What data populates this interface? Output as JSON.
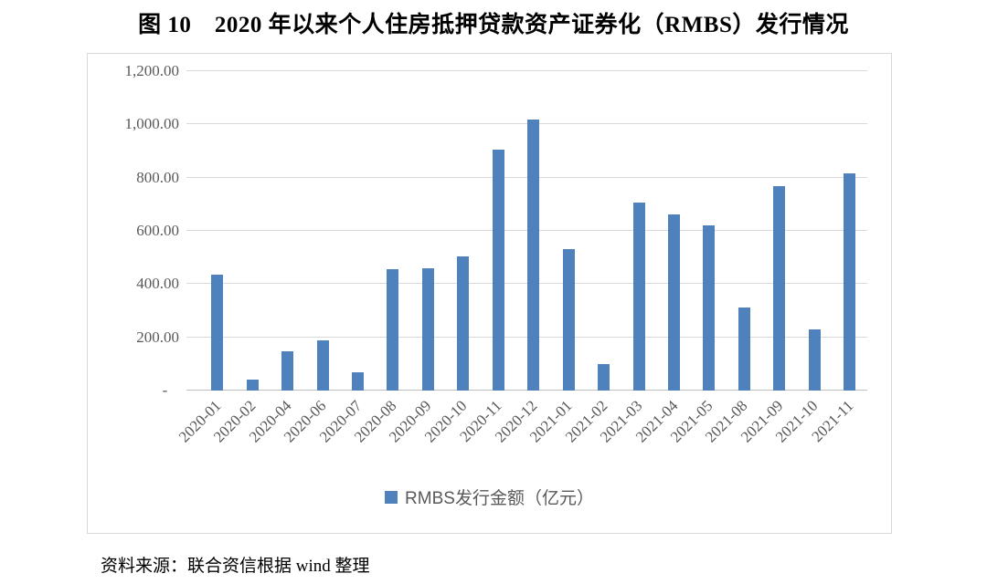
{
  "figure": {
    "title": "图 10　2020 年以来个人住房抵押贷款资产证券化（RMBS）发行情况",
    "source_note": "资料来源：联合资信根据 wind 整理"
  },
  "chart_data": {
    "type": "bar",
    "title": "图 10　2020 年以来个人住房抵押贷款资产证券化（RMBS）发行情况",
    "categories": [
      "2020-01",
      "2020-02",
      "2020-04",
      "2020-06",
      "2020-07",
      "2020-08",
      "2020-09",
      "2020-10",
      "2020-11",
      "2020-12",
      "2021-01",
      "2021-02",
      "2021-03",
      "2021-04",
      "2021-05",
      "2021-08",
      "2021-09",
      "2021-10",
      "2021-11"
    ],
    "series": [
      {
        "name": "RMBS发行金额（亿元）",
        "values": [
          435,
          40,
          149,
          187,
          69,
          455,
          458,
          503,
          905,
          1020,
          533,
          100,
          708,
          663,
          620,
          311,
          768,
          230,
          815
        ]
      }
    ],
    "xlabel": "",
    "ylabel": "",
    "ylim": [
      0,
      1200
    ],
    "grid": true,
    "x_tick_rotation_deg": 45,
    "yticks": [
      {
        "value": 0,
        "label": "-   "
      },
      {
        "value": 200,
        "label": "200.00"
      },
      {
        "value": 400,
        "label": "400.00"
      },
      {
        "value": 600,
        "label": "600.00"
      },
      {
        "value": 800,
        "label": "800.00"
      },
      {
        "value": 1000,
        "label": "1,000.00"
      },
      {
        "value": 1200,
        "label": "1,200.00"
      }
    ],
    "legend": {
      "position": "bottom",
      "label": "RMBS发行金额（亿元）",
      "marker": "square-icon"
    },
    "colors": {
      "bar": "#4F81BD",
      "gridline": "#D9D9D9",
      "axis_line": "#BFBFBF",
      "tick_text": "#595959",
      "title_text": "#000000",
      "chart_border": "#D9D9D9",
      "background": "#FFFFFF"
    }
  }
}
